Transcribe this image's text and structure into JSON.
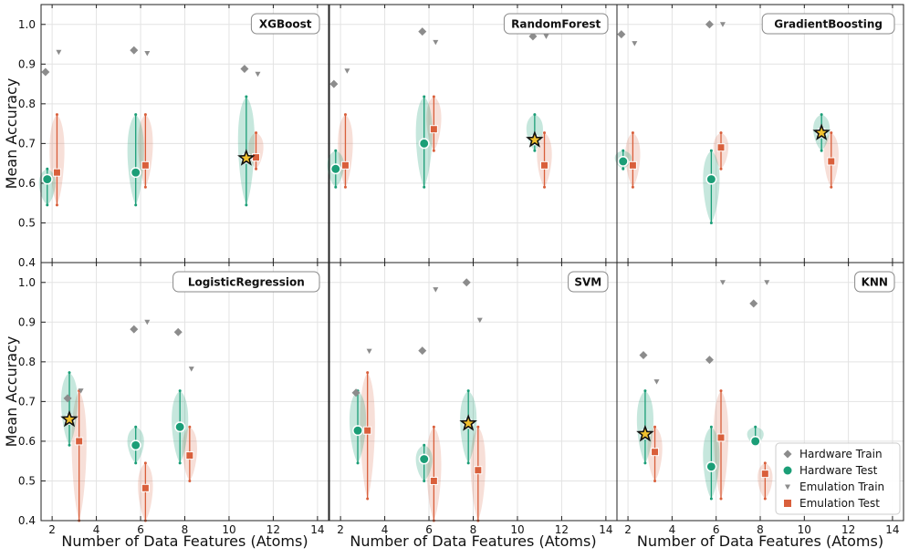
{
  "chart_data": {
    "type": "scatter",
    "layout": "2x3 grid of panels, shared x and y axes",
    "xlabel": "Number of Data Features (Atoms)",
    "ylabel": "Mean Accuracy",
    "xlim": [
      1.5,
      14.5
    ],
    "ylim": [
      0.4,
      1.05
    ],
    "xticks": [
      2,
      4,
      6,
      8,
      10,
      12,
      14
    ],
    "yticks": [
      0.4,
      0.5,
      0.6,
      0.7,
      0.8,
      0.9,
      1.0
    ],
    "legend": {
      "placement": "lower-right of KNN panel",
      "entries": [
        {
          "label": "Hardware Train",
          "marker": "diamond",
          "color": "#8c8c8c"
        },
        {
          "label": "Hardware Test",
          "marker": "circle",
          "color": "#1b9e77"
        },
        {
          "label": "Emulation Train",
          "marker": "triangle-down",
          "color": "#8c8c8c"
        },
        {
          "label": "Emulation Test",
          "marker": "square",
          "color": "#d95f3b"
        }
      ]
    },
    "colors": {
      "hardware_test": "#1b9e77",
      "emulation_test": "#d95f3b",
      "train": "#8c8c8c",
      "best_star": "#f2c12e"
    },
    "panels": [
      {
        "title": "XGBoost",
        "groups": [
          {
            "x": 2,
            "hw_train": 0.88,
            "hw_test": 0.61,
            "hw_range": [
              0.545,
              0.636
            ],
            "em_train": 0.93,
            "em_test": 0.627,
            "em_range": [
              0.545,
              0.773
            ]
          },
          {
            "x": 6,
            "hw_train": 0.935,
            "hw_test": 0.627,
            "hw_range": [
              0.545,
              0.773
            ],
            "em_train": 0.927,
            "em_test": 0.645,
            "em_range": [
              0.59,
              0.773
            ]
          },
          {
            "x": 11,
            "hw_train": 0.888,
            "hw_test": 0.663,
            "hw_range": [
              0.545,
              0.818
            ],
            "em_train": 0.875,
            "em_test": 0.665,
            "em_range": [
              0.636,
              0.727
            ],
            "best": true
          }
        ]
      },
      {
        "title": "RandomForest",
        "groups": [
          {
            "x": 2,
            "hw_train": 0.85,
            "hw_test": 0.636,
            "hw_range": [
              0.59,
              0.682
            ],
            "em_train": 0.883,
            "em_test": 0.645,
            "em_range": [
              0.59,
              0.773
            ]
          },
          {
            "x": 6,
            "hw_train": 0.982,
            "hw_test": 0.7,
            "hw_range": [
              0.59,
              0.818
            ],
            "em_train": 0.955,
            "em_test": 0.736,
            "em_range": [
              0.682,
              0.818
            ]
          },
          {
            "x": 11,
            "hw_train": 0.97,
            "hw_test": 0.709,
            "hw_range": [
              0.682,
              0.773
            ],
            "em_train": 0.97,
            "em_test": 0.645,
            "em_range": [
              0.59,
              0.727
            ],
            "best": true
          }
        ]
      },
      {
        "title": "GradientBoosting",
        "groups": [
          {
            "x": 2,
            "hw_train": 0.975,
            "hw_test": 0.655,
            "hw_range": [
              0.636,
              0.682
            ],
            "em_train": 0.952,
            "em_test": 0.645,
            "em_range": [
              0.59,
              0.727
            ]
          },
          {
            "x": 6,
            "hw_train": 1.0,
            "hw_test": 0.61,
            "hw_range": [
              0.5,
              0.682
            ],
            "em_train": 1.0,
            "em_test": 0.69,
            "em_range": [
              0.636,
              0.727
            ]
          },
          {
            "x": 11,
            "hw_train": null,
            "hw_test": 0.727,
            "hw_range": [
              0.682,
              0.773
            ],
            "em_train": null,
            "em_test": 0.655,
            "em_range": [
              0.59,
              0.727
            ],
            "best": true
          }
        ]
      },
      {
        "title": "LogisticRegression",
        "groups": [
          {
            "x": 3,
            "hw_train": 0.708,
            "hw_test": 0.655,
            "hw_range": [
              0.59,
              0.773
            ],
            "em_train": 0.727,
            "em_test": 0.6,
            "em_range": [
              0.4,
              0.727
            ],
            "best": true
          },
          {
            "x": 6,
            "hw_train": 0.882,
            "hw_test": 0.59,
            "hw_range": [
              0.545,
              0.636
            ],
            "em_train": 0.9,
            "em_test": 0.482,
            "em_range": [
              0.4,
              0.545
            ]
          },
          {
            "x": 8,
            "hw_train": 0.875,
            "hw_test": 0.636,
            "hw_range": [
              0.545,
              0.727
            ],
            "em_train": 0.782,
            "em_test": 0.564,
            "em_range": [
              0.5,
              0.636
            ]
          }
        ]
      },
      {
        "title": "SVM",
        "groups": [
          {
            "x": 3,
            "hw_train": 0.722,
            "hw_test": 0.627,
            "hw_range": [
              0.545,
              0.727
            ],
            "em_train": 0.827,
            "em_test": 0.627,
            "em_range": [
              0.455,
              0.773
            ]
          },
          {
            "x": 6,
            "hw_train": 0.828,
            "hw_test": 0.555,
            "hw_range": [
              0.5,
              0.59
            ],
            "em_train": 0.982,
            "em_test": 0.5,
            "em_range": [
              0.4,
              0.636
            ]
          },
          {
            "x": 8,
            "hw_train": 1.0,
            "hw_test": 0.645,
            "hw_range": [
              0.545,
              0.727
            ],
            "em_train": 0.905,
            "em_test": 0.527,
            "em_range": [
              0.4,
              0.636
            ],
            "best": true
          }
        ]
      },
      {
        "title": "KNN",
        "groups": [
          {
            "x": 3,
            "hw_train": 0.817,
            "hw_test": 0.618,
            "hw_range": [
              0.545,
              0.727
            ],
            "em_train": 0.75,
            "em_test": 0.573,
            "em_range": [
              0.5,
              0.636
            ],
            "best": true
          },
          {
            "x": 6,
            "hw_train": 0.805,
            "hw_test": 0.536,
            "hw_range": [
              0.455,
              0.636
            ],
            "em_train": 1.0,
            "em_test": 0.609,
            "em_range": [
              0.455,
              0.727
            ]
          },
          {
            "x": 8,
            "hw_train": 0.947,
            "hw_test": 0.6,
            "hw_range": [
              0.59,
              0.636
            ],
            "em_train": 1.0,
            "em_test": 0.518,
            "em_range": [
              0.455,
              0.545
            ]
          }
        ]
      }
    ]
  }
}
